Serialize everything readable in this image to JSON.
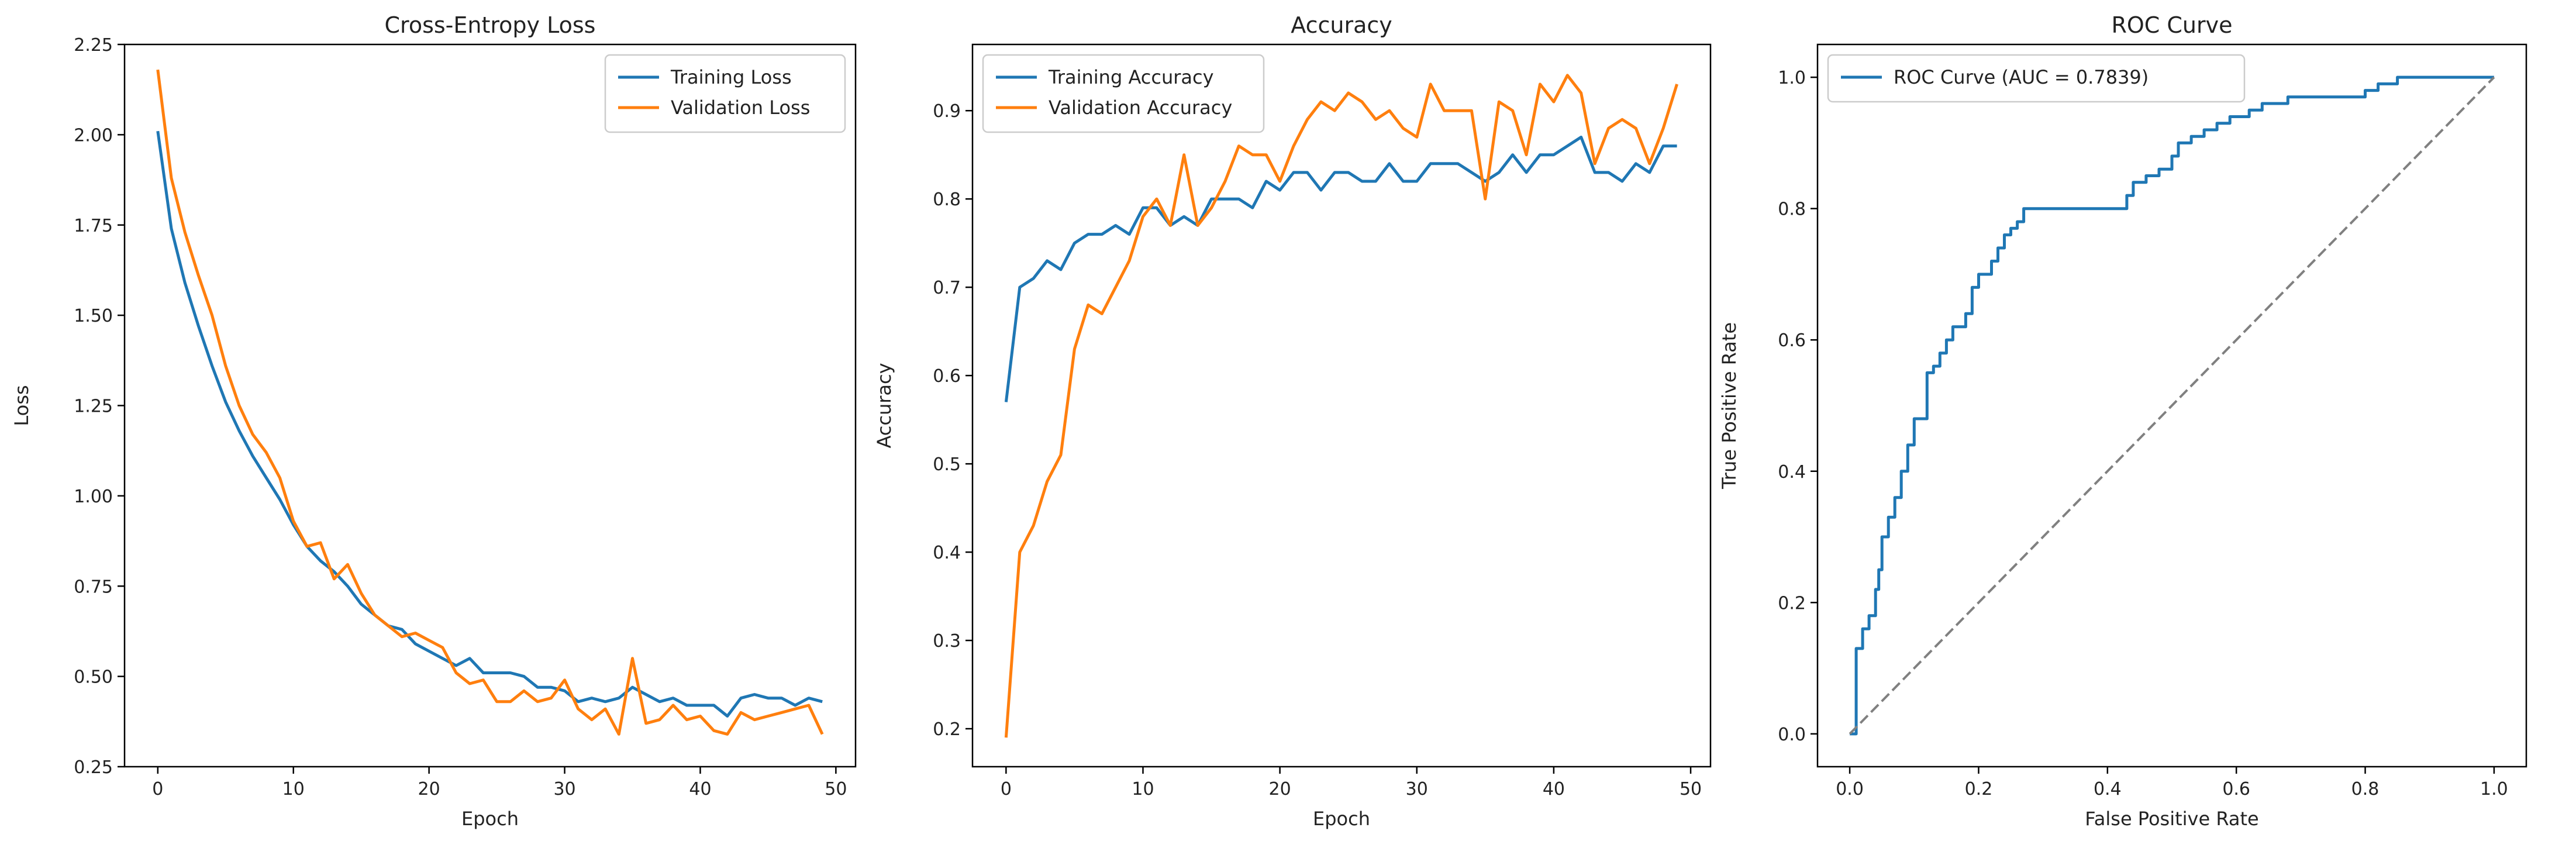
{
  "chart_data": [
    {
      "type": "line",
      "title": "Cross-Entropy Loss",
      "xlabel": "Epoch",
      "ylabel": "Loss",
      "xlim": [
        -2.45,
        51.45
      ],
      "ylim": [
        0.25,
        2.25
      ],
      "xticks": [
        0,
        10,
        20,
        30,
        40,
        50
      ],
      "yticks": [
        0.25,
        0.5,
        0.75,
        1.0,
        1.25,
        1.5,
        1.75,
        2.0,
        2.25
      ],
      "ytick_labels": [
        "0.25",
        "0.50",
        "0.75",
        "1.00",
        "1.25",
        "1.50",
        "1.75",
        "2.00",
        "2.25"
      ],
      "grid": false,
      "legend_position": "top-right",
      "series": [
        {
          "name": "Training Loss",
          "color": "#1f77b4",
          "x": [
            0,
            1,
            2,
            3,
            4,
            5,
            6,
            7,
            8,
            9,
            10,
            11,
            12,
            13,
            14,
            15,
            16,
            17,
            18,
            19,
            20,
            21,
            22,
            23,
            24,
            25,
            26,
            27,
            28,
            29,
            30,
            31,
            32,
            33,
            34,
            35,
            36,
            37,
            38,
            39,
            40,
            41,
            42,
            43,
            44,
            45,
            46,
            47,
            48,
            49
          ],
          "y": [
            2.01,
            1.74,
            1.59,
            1.47,
            1.36,
            1.26,
            1.18,
            1.11,
            1.05,
            0.99,
            0.92,
            0.86,
            0.82,
            0.79,
            0.75,
            0.7,
            0.67,
            0.64,
            0.63,
            0.59,
            0.57,
            0.55,
            0.53,
            0.55,
            0.51,
            0.51,
            0.51,
            0.5,
            0.47,
            0.47,
            0.46,
            0.43,
            0.44,
            0.43,
            0.44,
            0.47,
            0.45,
            0.43,
            0.44,
            0.42,
            0.42,
            0.42,
            0.39,
            0.44,
            0.45,
            0.44,
            0.44,
            0.42,
            0.44,
            0.43
          ]
        },
        {
          "name": "Validation Loss",
          "color": "#ff7f0e",
          "x": [
            0,
            1,
            2,
            3,
            4,
            5,
            6,
            7,
            8,
            9,
            10,
            11,
            12,
            13,
            14,
            15,
            16,
            17,
            18,
            19,
            20,
            21,
            22,
            23,
            24,
            25,
            26,
            27,
            28,
            29,
            30,
            31,
            32,
            33,
            34,
            35,
            36,
            37,
            38,
            39,
            40,
            41,
            42,
            43,
            44,
            45,
            46,
            47,
            48,
            49
          ],
          "y": [
            2.18,
            1.88,
            1.73,
            1.61,
            1.5,
            1.36,
            1.25,
            1.17,
            1.12,
            1.05,
            0.93,
            0.86,
            0.87,
            0.77,
            0.81,
            0.73,
            0.67,
            0.64,
            0.61,
            0.62,
            0.6,
            0.58,
            0.51,
            0.48,
            0.49,
            0.43,
            0.43,
            0.46,
            0.43,
            0.44,
            0.49,
            0.41,
            0.38,
            0.41,
            0.34,
            0.55,
            0.37,
            0.38,
            0.42,
            0.38,
            0.39,
            0.35,
            0.34,
            0.4,
            0.38,
            0.39,
            0.4,
            0.41,
            0.42,
            0.34
          ]
        }
      ]
    },
    {
      "type": "line",
      "title": "Accuracy",
      "xlabel": "Epoch",
      "ylabel": "Accuracy",
      "xlim": [
        -2.45,
        51.45
      ],
      "ylim": [
        0.157,
        0.975
      ],
      "xticks": [
        0,
        10,
        20,
        30,
        40,
        50
      ],
      "yticks": [
        0.2,
        0.3,
        0.4,
        0.5,
        0.6,
        0.7,
        0.8,
        0.9
      ],
      "ytick_labels": [
        "0.2",
        "0.3",
        "0.4",
        "0.5",
        "0.6",
        "0.7",
        "0.8",
        "0.9"
      ],
      "grid": false,
      "legend_position": "top-left",
      "series": [
        {
          "name": "Training Accuracy",
          "color": "#1f77b4",
          "x": [
            0,
            1,
            2,
            3,
            4,
            5,
            6,
            7,
            8,
            9,
            10,
            11,
            12,
            13,
            14,
            15,
            16,
            17,
            18,
            19,
            20,
            21,
            22,
            23,
            24,
            25,
            26,
            27,
            28,
            29,
            30,
            31,
            32,
            33,
            34,
            35,
            36,
            37,
            38,
            39,
            40,
            41,
            42,
            43,
            44,
            45,
            46,
            47,
            48,
            49
          ],
          "y": [
            0.57,
            0.7,
            0.71,
            0.73,
            0.72,
            0.75,
            0.76,
            0.76,
            0.77,
            0.76,
            0.79,
            0.79,
            0.77,
            0.78,
            0.77,
            0.8,
            0.8,
            0.8,
            0.79,
            0.82,
            0.81,
            0.83,
            0.83,
            0.81,
            0.83,
            0.83,
            0.82,
            0.82,
            0.84,
            0.82,
            0.82,
            0.84,
            0.84,
            0.84,
            0.83,
            0.82,
            0.83,
            0.85,
            0.83,
            0.85,
            0.85,
            0.86,
            0.87,
            0.83,
            0.83,
            0.82,
            0.84,
            0.83,
            0.86,
            0.86
          ]
        },
        {
          "name": "Validation Accuracy",
          "color": "#ff7f0e",
          "x": [
            0,
            1,
            2,
            3,
            4,
            5,
            6,
            7,
            8,
            9,
            10,
            11,
            12,
            13,
            14,
            15,
            16,
            17,
            18,
            19,
            20,
            21,
            22,
            23,
            24,
            25,
            26,
            27,
            28,
            29,
            30,
            31,
            32,
            33,
            34,
            35,
            36,
            37,
            38,
            39,
            40,
            41,
            42,
            43,
            44,
            45,
            46,
            47,
            48,
            49
          ],
          "y": [
            0.19,
            0.4,
            0.43,
            0.48,
            0.51,
            0.63,
            0.68,
            0.67,
            0.7,
            0.73,
            0.78,
            0.8,
            0.77,
            0.85,
            0.77,
            0.79,
            0.82,
            0.86,
            0.85,
            0.85,
            0.82,
            0.86,
            0.89,
            0.91,
            0.9,
            0.92,
            0.91,
            0.89,
            0.9,
            0.88,
            0.87,
            0.93,
            0.9,
            0.9,
            0.9,
            0.8,
            0.91,
            0.9,
            0.85,
            0.93,
            0.91,
            0.94,
            0.92,
            0.84,
            0.88,
            0.89,
            0.88,
            0.84,
            0.88,
            0.93
          ]
        }
      ]
    },
    {
      "type": "line",
      "title": "ROC Curve",
      "xlabel": "False Positive Rate",
      "ylabel": "True Positive Rate",
      "xlim": [
        -0.05,
        1.05
      ],
      "ylim": [
        -0.05,
        1.05
      ],
      "xticks": [
        0.0,
        0.2,
        0.4,
        0.6,
        0.8,
        1.0
      ],
      "yticks": [
        0.0,
        0.2,
        0.4,
        0.6,
        0.8,
        1.0
      ],
      "xtick_labels": [
        "0.0",
        "0.2",
        "0.4",
        "0.6",
        "0.8",
        "1.0"
      ],
      "ytick_labels": [
        "0.0",
        "0.2",
        "0.4",
        "0.6",
        "0.8",
        "1.0"
      ],
      "grid": false,
      "legend_position": "top-left",
      "series": [
        {
          "name": "ROC Curve (AUC = 0.7839)",
          "color": "#1f77b4",
          "step": true,
          "x": [
            0.0,
            0.01,
            0.01,
            0.02,
            0.03,
            0.04,
            0.045,
            0.05,
            0.06,
            0.07,
            0.08,
            0.09,
            0.1,
            0.11,
            0.12,
            0.13,
            0.14,
            0.15,
            0.16,
            0.17,
            0.18,
            0.19,
            0.2,
            0.22,
            0.23,
            0.24,
            0.25,
            0.26,
            0.27,
            0.28,
            0.29,
            0.3,
            0.31,
            0.33,
            0.35,
            0.37,
            0.43,
            0.44,
            0.45,
            0.46,
            0.48,
            0.5,
            0.51,
            0.53,
            0.55,
            0.57,
            0.59,
            0.6,
            0.62,
            0.64,
            0.66,
            0.68,
            0.7,
            0.75,
            0.8,
            0.82,
            0.85,
            0.9,
            1.0
          ],
          "y": [
            0.0,
            0.0,
            0.13,
            0.16,
            0.18,
            0.22,
            0.25,
            0.3,
            0.33,
            0.36,
            0.4,
            0.44,
            0.48,
            0.48,
            0.55,
            0.56,
            0.58,
            0.6,
            0.62,
            0.62,
            0.64,
            0.68,
            0.7,
            0.72,
            0.74,
            0.76,
            0.77,
            0.78,
            0.8,
            0.8,
            0.8,
            0.8,
            0.8,
            0.8,
            0.8,
            0.8,
            0.82,
            0.84,
            0.84,
            0.85,
            0.86,
            0.88,
            0.9,
            0.91,
            0.92,
            0.93,
            0.94,
            0.94,
            0.95,
            0.96,
            0.96,
            0.97,
            0.97,
            0.97,
            0.98,
            0.99,
            1.0,
            1.0,
            1.0
          ]
        },
        {
          "name": "",
          "color": "#808080",
          "dashed": true,
          "x": [
            0,
            1
          ],
          "y": [
            0,
            1
          ]
        }
      ]
    }
  ]
}
